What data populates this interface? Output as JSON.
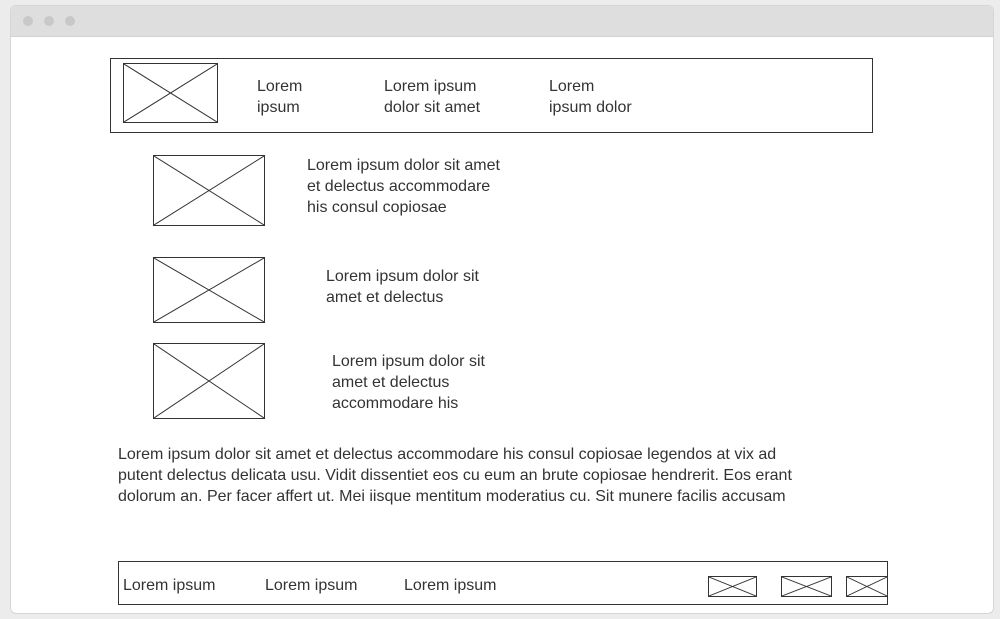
{
  "window": {
    "buttons": [
      "close",
      "minimize",
      "maximize"
    ]
  },
  "header": {
    "logo_icon": "image-placeholder-icon",
    "nav": [
      {
        "line1": "Lorem",
        "line2": "ipsum"
      },
      {
        "line1": "Lorem ipsum",
        "line2": "dolor sit amet"
      },
      {
        "line1": "Lorem",
        "line2": "ipsum dolor"
      }
    ]
  },
  "features": [
    {
      "icon": "image-placeholder-icon",
      "lines": [
        "Lorem ipsum dolor sit amet",
        "et delectus accommodare",
        "his consul copiosae"
      ]
    },
    {
      "icon": "image-placeholder-icon",
      "lines": [
        "Lorem ipsum dolor sit",
        "amet et delectus"
      ]
    },
    {
      "icon": "image-placeholder-icon",
      "lines": [
        "Lorem ipsum dolor sit",
        "amet et delectus",
        "accommodare his"
      ]
    }
  ],
  "body_text": {
    "lines": [
      "Lorem ipsum dolor sit amet et delectus accommodare his consul copiosae legendos at vix ad",
      "putent delectus delicata usu. Vidit dissentiet eos cu eum an brute copiosae hendrerit. Eos erant",
      "dolorum an. Per facer affert ut. Mei iisque mentitum moderatius cu. Sit munere facilis accusam"
    ]
  },
  "footer": {
    "links": [
      "Lorem ipsum",
      "Lorem ipsum",
      "Lorem ipsum"
    ],
    "icons": [
      "image-placeholder-icon",
      "image-placeholder-icon",
      "image-placeholder-icon"
    ]
  }
}
